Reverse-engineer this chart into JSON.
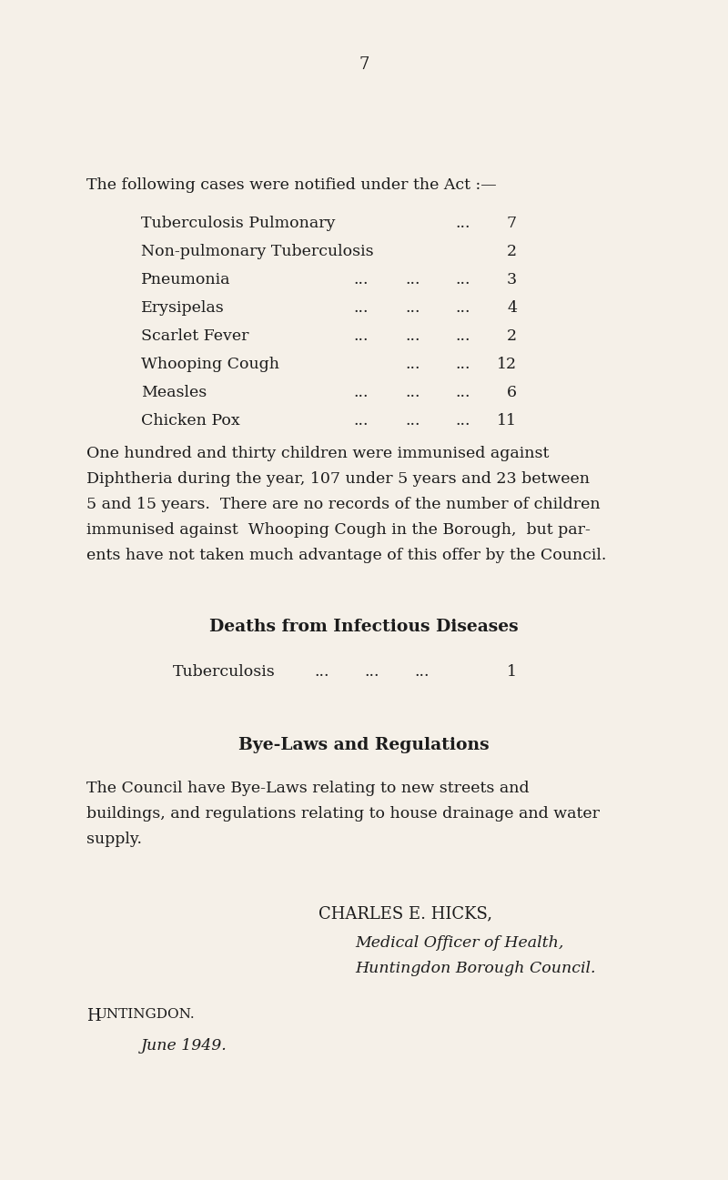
{
  "background_color": "#f5f0e8",
  "page_number": "7",
  "section_header": "The following cases were notified under the Act :—",
  "table_rows": [
    {
      "disease": "Tuberculosis Pulmonary",
      "dots": "...",
      "num": "7",
      "has_dots": true,
      "dot_style": "one"
    },
    {
      "disease": "Non-pulmonary Tuberculosis",
      "dots": "",
      "num": "2",
      "has_dots": false,
      "dot_style": "none"
    },
    {
      "disease": "Pneumonia",
      "dots": "...",
      "num": "3",
      "has_dots": true,
      "dot_style": "three"
    },
    {
      "disease": "Erysipelas",
      "dots": "...",
      "num": "4",
      "has_dots": true,
      "dot_style": "three"
    },
    {
      "disease": "Scarlet Fever",
      "dots": "...",
      "num": "2",
      "has_dots": true,
      "dot_style": "three"
    },
    {
      "disease": "Whooping Cough",
      "dots": "...",
      "num": "12",
      "has_dots": true,
      "dot_style": "two"
    },
    {
      "disease": "Measles",
      "dots": "...",
      "num": "6",
      "has_dots": true,
      "dot_style": "three"
    },
    {
      "disease": "Chicken Pox",
      "dots": "...",
      "num": "11",
      "has_dots": true,
      "dot_style": "three"
    }
  ],
  "para1_lines": [
    "One hundred and thirty children were immunised against",
    "Diphtheria during the year, 107 under 5 years and 23 between",
    "5 and 15 years.  There are no records of the number of children",
    "immunised against  Whooping Cough in the Borough,  but par-",
    "ents have not taken much advantage of this offer by the Council."
  ],
  "deaths_header": "Deaths from Infectious Diseases",
  "deaths_tuberculosis": "Tuberculosis",
  "deaths_dots": "...     ...     ...",
  "deaths_num": "1",
  "byelaws_header": "Bye-Laws and Regulations",
  "byelaws_lines": [
    "The Council have Bye-Laws relating to new streets and",
    "buildings, and regulations relating to house drainage and water",
    "supply."
  ],
  "signatory_name": "CHARLES E. HICKS,",
  "signatory_title1": "Medical Officer of Health,",
  "signatory_title2": "Huntingdon Borough Council.",
  "location": "Huntingdon.",
  "date": "June 1949.",
  "text_color": "#1c1c1c",
  "fs_body": 12.5,
  "fs_header": 13.0,
  "fs_section": 12.5,
  "fs_bold": 13.5
}
